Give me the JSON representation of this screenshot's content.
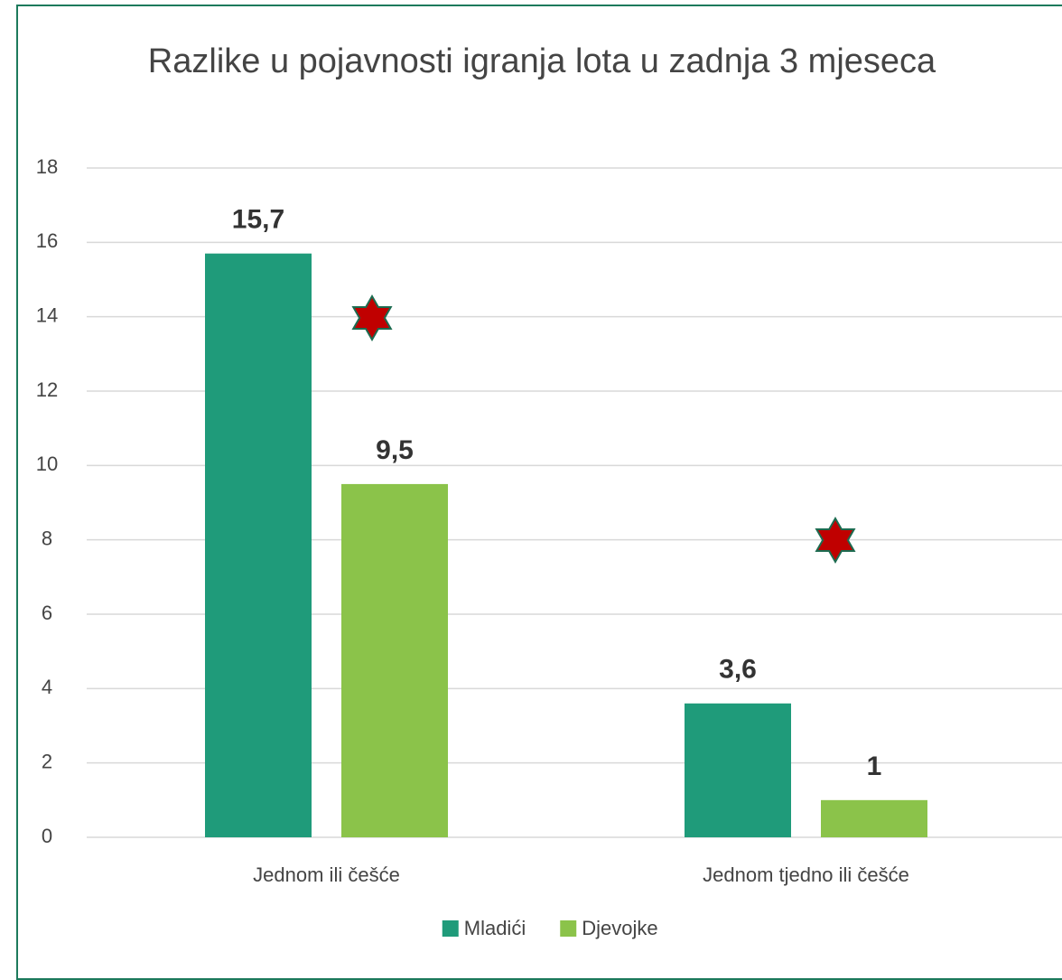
{
  "chart_data": {
    "type": "bar",
    "title": "Razlike u pojavnosti igranja lota u zadnja 3 mjeseca",
    "categories": [
      "Jednom ili češće",
      "Jednom tjedno ili češće"
    ],
    "series": [
      {
        "name": "Mladići",
        "color": "#1f9b7a",
        "values": [
          15.7,
          3.6
        ],
        "value_labels": [
          "15,7",
          "3,6"
        ]
      },
      {
        "name": "Djevojke",
        "color": "#8bc34a",
        "values": [
          9.5,
          1
        ],
        "value_labels": [
          "9,5",
          "1"
        ]
      }
    ],
    "ylim": [
      0,
      18
    ],
    "yticks": [
      0,
      2,
      4,
      6,
      8,
      10,
      12,
      14,
      16,
      18
    ],
    "grid": true,
    "legend": "bottom"
  }
}
